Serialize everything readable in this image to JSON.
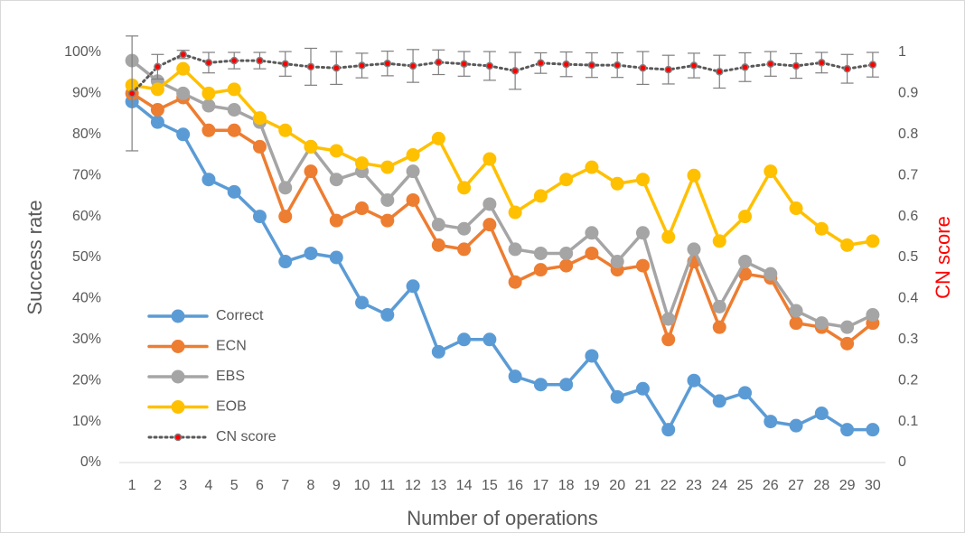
{
  "chart_data": {
    "type": "line",
    "xlabel": "Number of operations",
    "ylabel": "Success rate",
    "y2label": "CN score",
    "categories": [
      "1",
      "2",
      "3",
      "4",
      "5",
      "6",
      "7",
      "8",
      "9",
      "10",
      "11",
      "12",
      "13",
      "14",
      "15",
      "16",
      "17",
      "18",
      "19",
      "20",
      "21",
      "22",
      "23",
      "24",
      "25",
      "26",
      "27",
      "28",
      "29",
      "30"
    ],
    "ylim": [
      0,
      100
    ],
    "yticks": [
      {
        "value": 0,
        "label": "0%"
      },
      {
        "value": 10,
        "label": "10%"
      },
      {
        "value": 20,
        "label": "20%"
      },
      {
        "value": 30,
        "label": "30%"
      },
      {
        "value": 40,
        "label": "40%"
      },
      {
        "value": 50,
        "label": "50%"
      },
      {
        "value": 60,
        "label": "60%"
      },
      {
        "value": 70,
        "label": "70%"
      },
      {
        "value": 80,
        "label": "80%"
      },
      {
        "value": 90,
        "label": "90%"
      },
      {
        "value": 100,
        "label": "100%"
      }
    ],
    "y2lim": [
      0,
      1
    ],
    "y2ticks": [
      0,
      0.1,
      0.2,
      0.3,
      0.4,
      0.5,
      0.6,
      0.7,
      0.8,
      0.9,
      1
    ],
    "grid": false,
    "legend": "lower-left",
    "series": [
      {
        "name": "Correct",
        "color": "#5b9bd5",
        "values": [
          88,
          83,
          80,
          69,
          66,
          60,
          49,
          51,
          50,
          39,
          36,
          43,
          27,
          30,
          30,
          21,
          19,
          19,
          26,
          16,
          18,
          8,
          20,
          15,
          17,
          10,
          9,
          12,
          8,
          8
        ]
      },
      {
        "name": "ECN",
        "color": "#ed7d31",
        "values": [
          90,
          86,
          89,
          81,
          81,
          77,
          60,
          71,
          59,
          62,
          59,
          64,
          53,
          52,
          58,
          44,
          47,
          48,
          51,
          47,
          48,
          30,
          49,
          33,
          46,
          45,
          34,
          33,
          29,
          34
        ]
      },
      {
        "name": "EBS",
        "color": "#a5a5a5",
        "values": [
          98,
          93,
          90,
          87,
          86,
          83,
          67,
          77,
          69,
          71,
          64,
          71,
          58,
          57,
          63,
          52,
          51,
          51,
          56,
          49,
          56,
          35,
          52,
          38,
          49,
          46,
          37,
          34,
          33,
          36
        ]
      },
      {
        "name": "EOB",
        "color": "#ffc000",
        "values": [
          92,
          91,
          96,
          90,
          91,
          84,
          81,
          77,
          76,
          73,
          72,
          75,
          79,
          67,
          74,
          61,
          65,
          69,
          72,
          68,
          69,
          55,
          70,
          54,
          60,
          71,
          62,
          57,
          53,
          54
        ]
      },
      {
        "name": "CN score",
        "color": "#595959",
        "marker_color": "#ff0000",
        "axis": "y2",
        "dashed": true,
        "values": [
          0.9,
          0.965,
          0.995,
          0.975,
          0.98,
          0.98,
          0.972,
          0.965,
          0.962,
          0.968,
          0.973,
          0.967,
          0.976,
          0.972,
          0.967,
          0.955,
          0.974,
          0.971,
          0.969,
          0.969,
          0.962,
          0.958,
          0.968,
          0.953,
          0.964,
          0.972,
          0.967,
          0.975,
          0.96,
          0.97
        ],
        "errors": [
          0.14,
          0.03,
          0.01,
          0.025,
          0.02,
          0.02,
          0.03,
          0.045,
          0.04,
          0.03,
          0.03,
          0.04,
          0.03,
          0.03,
          0.035,
          0.045,
          0.025,
          0.03,
          0.03,
          0.03,
          0.04,
          0.035,
          0.03,
          0.04,
          0.035,
          0.03,
          0.03,
          0.025,
          0.035,
          0.03
        ]
      }
    ]
  }
}
